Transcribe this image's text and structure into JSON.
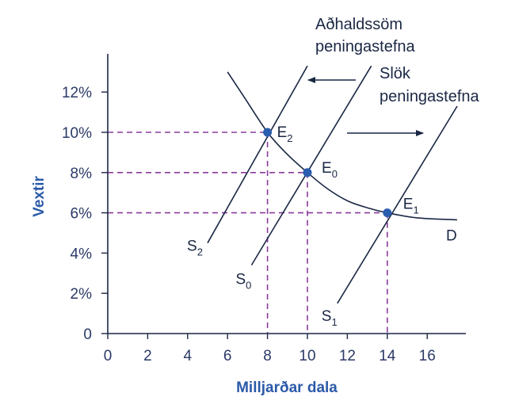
{
  "chart_data": {
    "type": "line",
    "title": "",
    "xlabel": "Milljarðar dala",
    "ylabel": "Vextir",
    "xlim": [
      0,
      17.5
    ],
    "ylim": [
      0,
      13.5
    ],
    "x_ticks": [
      0,
      2,
      4,
      6,
      8,
      10,
      12,
      14,
      16
    ],
    "x_tick_labels": [
      "0",
      "2",
      "4",
      "6",
      "8",
      "10",
      "12",
      "14",
      "16"
    ],
    "y_ticks": [
      0,
      2,
      4,
      6,
      8,
      10,
      12
    ],
    "y_tick_labels": [
      "0",
      "2%",
      "4%",
      "6%",
      "8%",
      "10%",
      "12%"
    ],
    "grid": false,
    "demand": {
      "label": "D",
      "points": [
        [
          6.0,
          13.0
        ],
        [
          6.8,
          11.8
        ],
        [
          8.0,
          10.0
        ],
        [
          9.0,
          8.9
        ],
        [
          10.0,
          8.0
        ],
        [
          11.0,
          7.2
        ],
        [
          12.0,
          6.6
        ],
        [
          13.0,
          6.25
        ],
        [
          14.0,
          6.0
        ],
        [
          15.5,
          5.75
        ],
        [
          17.5,
          5.65
        ]
      ]
    },
    "supply": [
      {
        "label": "S",
        "sub": "2",
        "start": [
          5.0,
          4.5
        ],
        "end": [
          10.0,
          13.3
        ]
      },
      {
        "label": "S",
        "sub": "0",
        "start": [
          7.2,
          3.4
        ],
        "end": [
          13.2,
          13.3
        ]
      },
      {
        "label": "S",
        "sub": "1",
        "start": [
          11.5,
          1.5
        ],
        "end": [
          17.5,
          11.3
        ]
      }
    ],
    "equilibria": [
      {
        "label": "E",
        "sub": "2",
        "x": 8,
        "y": 10
      },
      {
        "label": "E",
        "sub": "0",
        "x": 10,
        "y": 8
      },
      {
        "label": "E",
        "sub": "1",
        "x": 14,
        "y": 6
      }
    ],
    "annotations": [
      {
        "line1": "Aðhaldssöm",
        "line2": "peningastefna",
        "direction": "left"
      },
      {
        "line1": "Slök",
        "line2": "peningastefna",
        "direction": "right"
      }
    ]
  }
}
